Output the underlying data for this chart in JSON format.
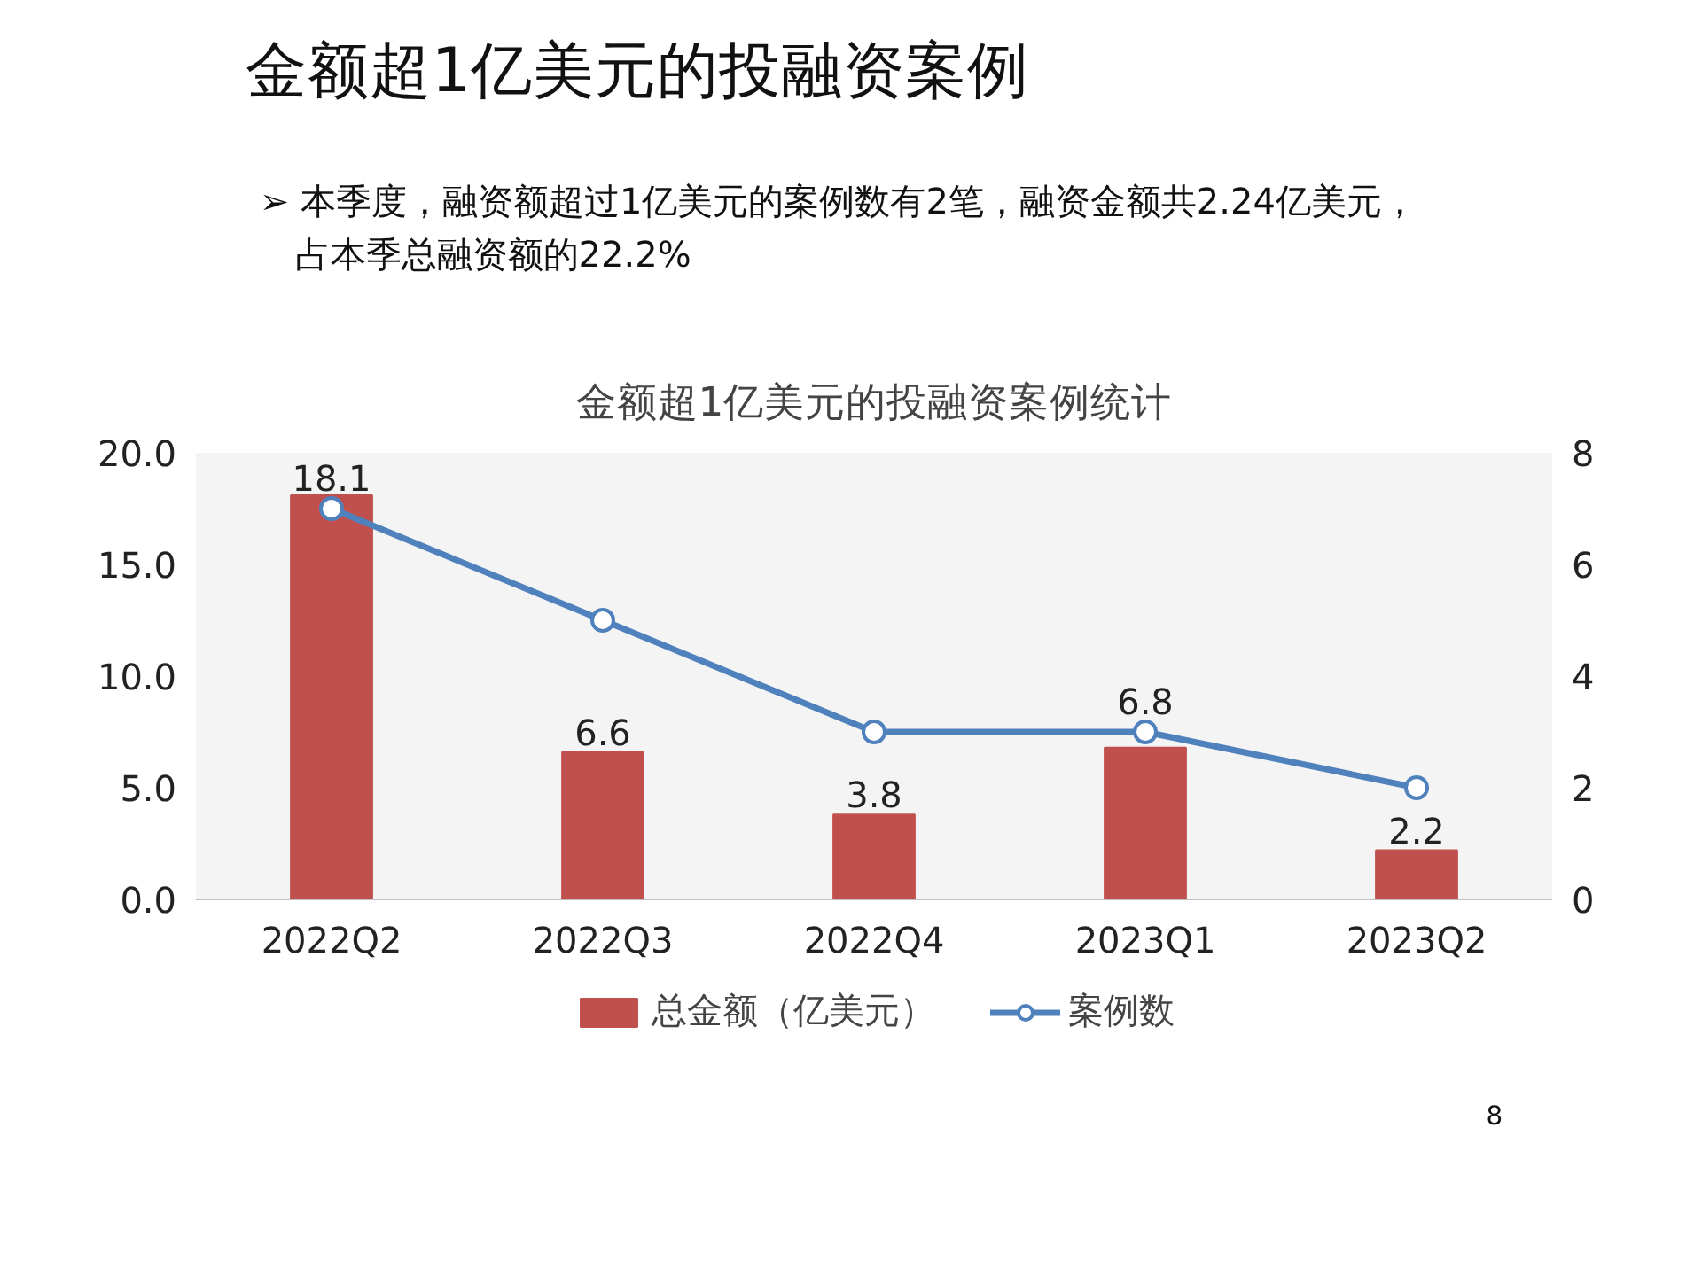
{
  "chart_data": {
    "type": "bar",
    "title": "金额超1亿美元的投融资案例统计",
    "categories": [
      "2022Q2",
      "2022Q3",
      "2022Q4",
      "2023Q1",
      "2023Q2"
    ],
    "series": [
      {
        "name": "总金额（亿美元）",
        "color": "#c0504d",
        "values": [
          18.1,
          6.6,
          3.8,
          6.8,
          2.2
        ],
        "value_labels": [
          "18.1",
          "6.6",
          "3.8",
          "6.8",
          "2.2"
        ]
      },
      {
        "name": "案例数",
        "type": "line",
        "axis": "y2",
        "color": "#4f81bd",
        "values": [
          7,
          5,
          3,
          3,
          2
        ]
      }
    ],
    "ylim": [
      0,
      20
    ],
    "yticks": [
      {
        "value": 0,
        "label": "0.0"
      },
      {
        "value": 5,
        "label": "5.0"
      },
      {
        "value": 10,
        "label": "10.0"
      },
      {
        "value": 15,
        "label": "15.0"
      },
      {
        "value": 20,
        "label": "20.0"
      }
    ],
    "y2lim": [
      0,
      8
    ],
    "y2ticks": [
      0,
      2,
      4,
      6,
      8
    ],
    "grid": false,
    "legend": "bottom",
    "marker": "circle",
    "line_style": "solid",
    "annotations": [
      "金额超1亿美元的投融资案例",
      "➢ 本季度，融资额超过1亿美元的案例数有2笔，融资金额共2.24亿美元，",
      "占本季总融资额的22.2%",
      "8"
    ]
  }
}
